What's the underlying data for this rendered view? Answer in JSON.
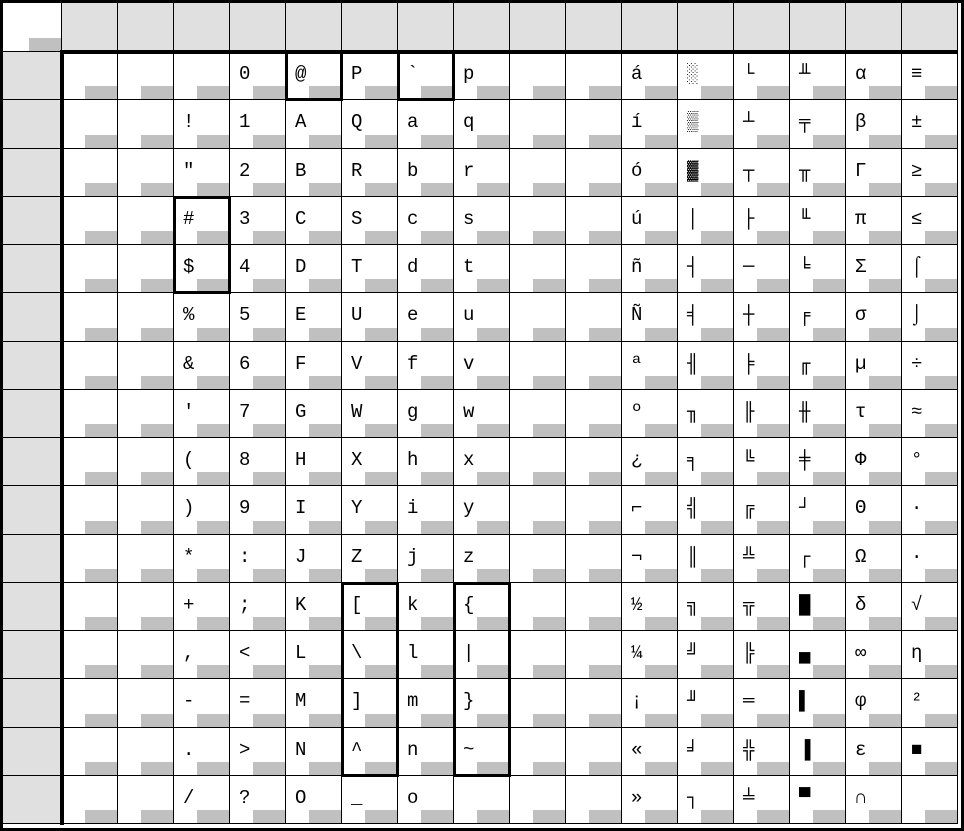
{
  "table": {
    "columns": [
      [
        "",
        "",
        "",
        "",
        "",
        "",
        "",
        "",
        "",
        "",
        "",
        "",
        "",
        "",
        "",
        ""
      ],
      [
        "",
        "",
        "",
        "",
        "",
        "",
        "",
        "",
        "",
        "",
        "",
        "",
        "",
        "",
        "",
        ""
      ],
      [
        "",
        " !",
        "\"",
        "#",
        "$",
        "%",
        "&",
        "'",
        "(",
        ")",
        "*",
        "+",
        ",",
        "-",
        ".",
        "/"
      ],
      [
        "0",
        "1",
        "2",
        "3",
        "4",
        "5",
        "6",
        "7",
        "8",
        "9",
        ":",
        ";",
        "<",
        "=",
        ">",
        "?"
      ],
      [
        "@",
        "A",
        "B",
        "C",
        "D",
        "E",
        "F",
        "G",
        "H",
        "I",
        "J",
        "K",
        "L",
        "M",
        "N",
        "O"
      ],
      [
        "P",
        "Q",
        "R",
        "S",
        "T",
        "U",
        "V",
        "W",
        "X",
        "Y",
        "Z",
        "[",
        "\\",
        "]",
        "^",
        "_"
      ],
      [
        "`",
        "a",
        "b",
        "c",
        "d",
        "e",
        "f",
        "g",
        "h",
        "i",
        "j",
        "k",
        "l",
        "m",
        "n",
        "o"
      ],
      [
        "p",
        "q",
        "r",
        "s",
        "t",
        "u",
        "v",
        "w",
        "x",
        "y",
        "z",
        "{",
        "|",
        "}",
        "~",
        ""
      ],
      [
        "",
        "",
        "",
        "",
        "",
        "",
        "",
        "",
        "",
        "",
        "",
        "",
        "",
        "",
        "",
        ""
      ],
      [
        "",
        "",
        "",
        "",
        "",
        "",
        "",
        "",
        "",
        "",
        "",
        "",
        "",
        "",
        "",
        ""
      ],
      [
        "á",
        "í",
        "ó",
        "ú",
        "ñ",
        "Ñ",
        "ª",
        "º",
        "¿",
        "⌐",
        "¬",
        "½",
        "¼",
        "¡",
        "«",
        "»"
      ],
      [
        "░",
        "▒",
        "▓",
        "│",
        "┤",
        "╡",
        "╢",
        "╖",
        "╕",
        "╣",
        "║",
        "╗",
        "╝",
        "╜",
        "╛",
        "┐"
      ],
      [
        "└",
        "┴",
        "┬",
        "├",
        "─",
        "┼",
        "╞",
        "╟",
        "╚",
        "╔",
        "╩",
        "╦",
        "╠",
        "═",
        "╬",
        "╧"
      ],
      [
        "╨",
        "╤",
        "╥",
        "╙",
        "╘",
        "╒",
        "╓",
        "╫",
        "╪",
        "┘",
        "┌",
        "█",
        "▄",
        "▌",
        "▐",
        "▀"
      ],
      [
        "α",
        "β",
        "Γ",
        "π",
        "Σ",
        "σ",
        "µ",
        "τ",
        "Φ",
        "Θ",
        "Ω",
        "δ",
        "∞",
        "φ",
        "ε",
        "∩"
      ],
      [
        "≡",
        "±",
        "≥",
        "≤",
        "⌠",
        "⌡",
        "÷",
        "≈",
        "°",
        "∙",
        "·",
        "√",
        "η",
        "²",
        "■",
        ""
      ]
    ],
    "highlighted_ranges": [
      {
        "col": 4,
        "row_start": 0,
        "row_end": 0
      },
      {
        "col": 6,
        "row_start": 0,
        "row_end": 0
      },
      {
        "col": 2,
        "row_start": 3,
        "row_end": 4
      },
      {
        "col": 5,
        "row_start": 11,
        "row_end": 14
      },
      {
        "col": 7,
        "row_start": 11,
        "row_end": 14
      }
    ],
    "colors": {
      "header_bg": "#e0e0e0",
      "cell_marker": "#c0c0c0",
      "border": "#000000"
    }
  }
}
